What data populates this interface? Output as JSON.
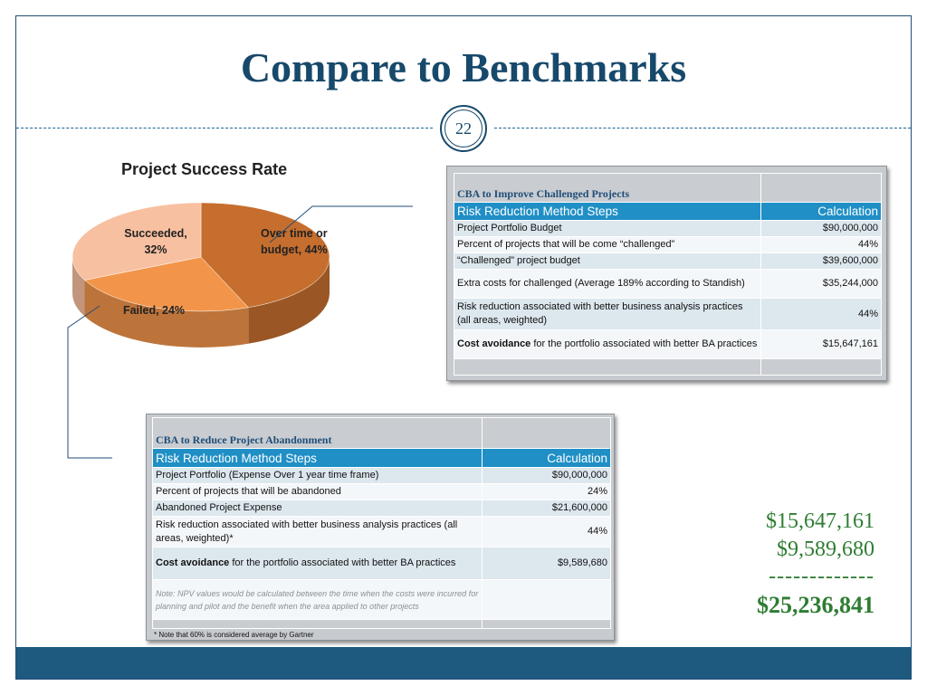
{
  "slide": {
    "title": "Compare to Benchmarks",
    "number": "22"
  },
  "chart_data": {
    "type": "pie",
    "title": "Project Success Rate",
    "slices": [
      {
        "label": "Over time or budget, 44%",
        "value": 44,
        "color": "#c66e2e"
      },
      {
        "label": "Failed, 24%",
        "value": 24,
        "color": "#f2954a"
      },
      {
        "label": "Succeeded, 32%",
        "value": 32,
        "color": "#f7c0a0"
      }
    ]
  },
  "table_challenged": {
    "caption": "CBA to Improve Challenged Projects",
    "headers": [
      "Risk Reduction Method Steps",
      "Calculation"
    ],
    "rows": [
      {
        "step": "Project Portfolio Budget",
        "calc": "$90,000,000"
      },
      {
        "step": "Percent of projects that will be come “challenged”",
        "calc": "44%"
      },
      {
        "step": "“Challenged” project budget",
        "calc": "$39,600,000"
      },
      {
        "step": "Extra costs for challenged (Average 189% according to Standish)",
        "calc": "$35,244,000"
      },
      {
        "step": "Risk reduction associated with better business analysis practices (all areas, weighted)",
        "calc": "44%"
      },
      {
        "step_bold": "Cost avoidance",
        "step_rest": " for the portfolio associated with better BA practices",
        "calc": "$15,647,161"
      }
    ]
  },
  "table_abandonment": {
    "caption": "CBA to Reduce Project Abandonment",
    "headers": [
      "Risk Reduction Method Steps",
      "Calculation"
    ],
    "rows": [
      {
        "step": "Project Portfolio (Expense Over 1 year time frame)",
        "calc": "$90,000,000"
      },
      {
        "step": "Percent of projects that will be abandoned",
        "calc": "24%"
      },
      {
        "step": "Abandoned Project Expense",
        "calc": "$21,600,000"
      },
      {
        "step": "Risk reduction associated with better business analysis practices (all areas, weighted)*",
        "calc": "44%"
      },
      {
        "step_bold": "Cost avoidance",
        "step_rest": " for the portfolio associated with better BA practices",
        "calc": "$9,589,680"
      }
    ],
    "note": "Note:  NPV values would be calculated between the time when the costs were incurred for planning and pilot and the benefit when the area applied to other projects",
    "footnote": "* Note that 60% is considered average by Gartner"
  },
  "totals": {
    "line1": "$15,647,161",
    "line2": "$9,589,680",
    "divider": "-------------",
    "total": "$25,236,841"
  }
}
